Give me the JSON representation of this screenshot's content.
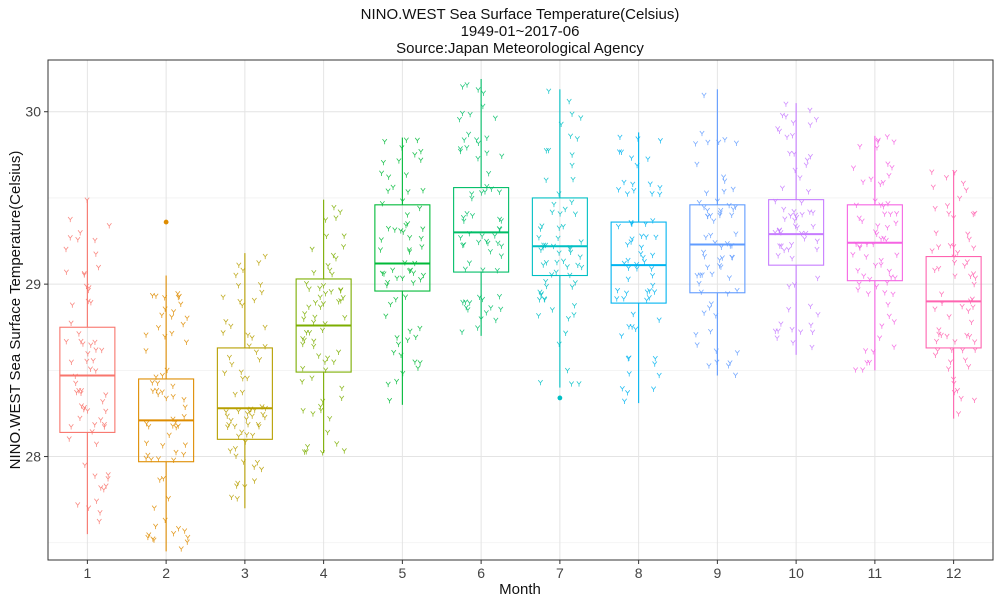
{
  "chart_data": {
    "type": "box",
    "title_lines": [
      "NINO.WEST Sea Surface Temperature(Celsius)",
      "1949-01~2017-06",
      "Source:Japan Meteorological Agency"
    ],
    "xlabel": "Month",
    "ylabel": "NINO.WEST Sea Surface Temperature(Celsius)",
    "ylim": [
      27.4,
      30.3
    ],
    "yticks": [
      28,
      29,
      30
    ],
    "categories": [
      "1",
      "2",
      "3",
      "4",
      "5",
      "6",
      "7",
      "8",
      "9",
      "10",
      "11",
      "12"
    ],
    "grid": true,
    "series": [
      {
        "category": "1",
        "color": "#F8766D",
        "q1": 28.14,
        "median": 28.47,
        "q3": 28.75,
        "whisker_low": 27.55,
        "whisker_high": 29.49,
        "outliers": []
      },
      {
        "category": "2",
        "color": "#DE8C00",
        "q1": 27.97,
        "median": 28.21,
        "q3": 28.45,
        "whisker_low": 27.45,
        "whisker_high": 29.05,
        "outliers": [
          29.36
        ]
      },
      {
        "category": "3",
        "color": "#B79F00",
        "q1": 28.1,
        "median": 28.28,
        "q3": 28.63,
        "whisker_low": 27.7,
        "whisker_high": 29.18,
        "outliers": []
      },
      {
        "category": "4",
        "color": "#7CAE00",
        "q1": 28.49,
        "median": 28.76,
        "q3": 29.03,
        "whisker_low": 28.02,
        "whisker_high": 29.49,
        "outliers": []
      },
      {
        "category": "5",
        "color": "#00BA38",
        "q1": 28.96,
        "median": 29.12,
        "q3": 29.46,
        "whisker_low": 28.3,
        "whisker_high": 29.85,
        "outliers": []
      },
      {
        "category": "6",
        "color": "#00BE67",
        "q1": 29.07,
        "median": 29.3,
        "q3": 29.56,
        "whisker_low": 28.7,
        "whisker_high": 30.19,
        "outliers": []
      },
      {
        "category": "7",
        "color": "#00BFC4",
        "q1": 29.05,
        "median": 29.22,
        "q3": 29.5,
        "whisker_low": 28.4,
        "whisker_high": 30.13,
        "outliers": [
          28.34
        ]
      },
      {
        "category": "8",
        "color": "#00B4F0",
        "q1": 28.89,
        "median": 29.11,
        "q3": 29.36,
        "whisker_low": 28.31,
        "whisker_high": 29.88,
        "outliers": []
      },
      {
        "category": "9",
        "color": "#619CFF",
        "q1": 28.95,
        "median": 29.23,
        "q3": 29.46,
        "whisker_low": 28.47,
        "whisker_high": 30.13,
        "outliers": []
      },
      {
        "category": "10",
        "color": "#C77CFF",
        "q1": 29.11,
        "median": 29.29,
        "q3": 29.49,
        "whisker_low": 28.59,
        "whisker_high": 30.05,
        "outliers": []
      },
      {
        "category": "11",
        "color": "#F564E3",
        "q1": 29.02,
        "median": 29.24,
        "q3": 29.46,
        "whisker_low": 28.5,
        "whisker_high": 29.86,
        "outliers": []
      },
      {
        "category": "12",
        "color": "#FF64B0",
        "q1": 28.63,
        "median": 28.9,
        "q3": 29.16,
        "whisker_low": 28.22,
        "whisker_high": 29.66,
        "outliers": []
      }
    ]
  }
}
